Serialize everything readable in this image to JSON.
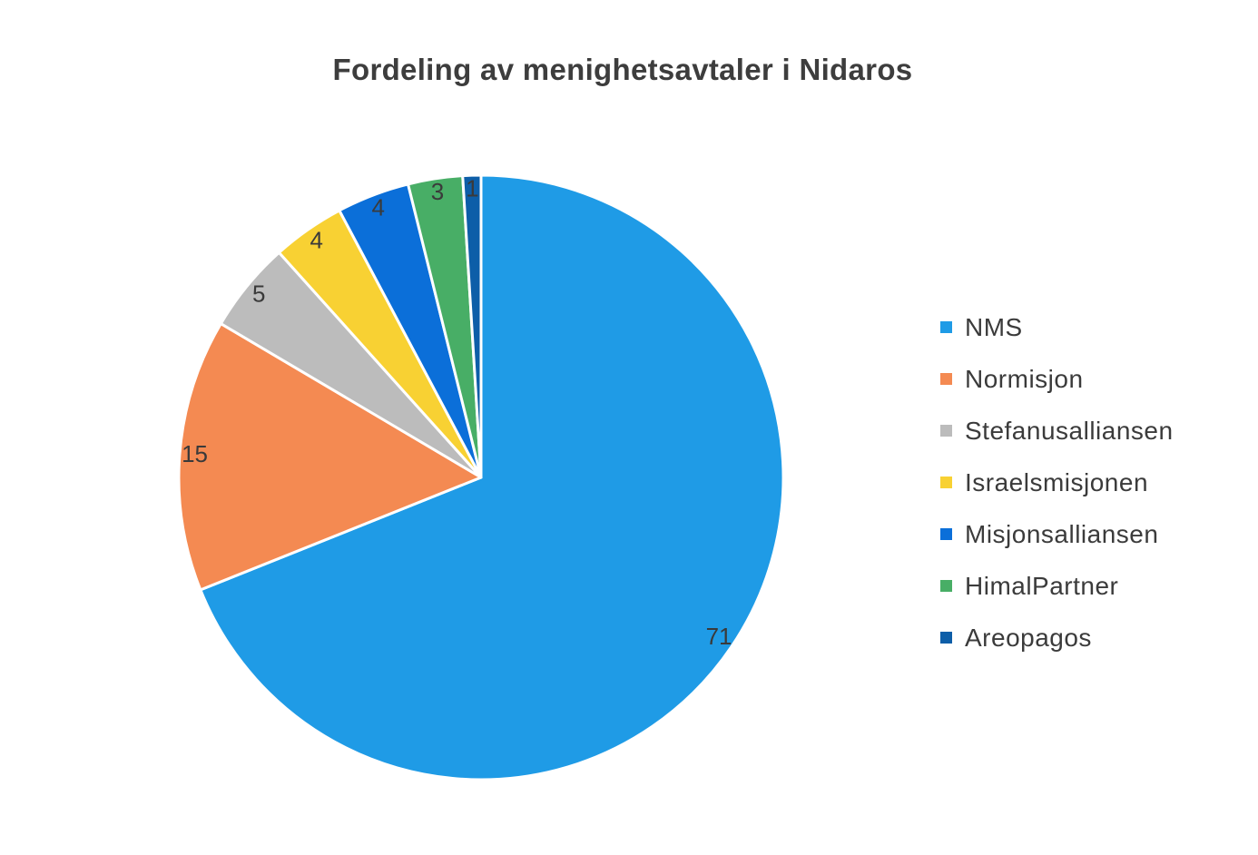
{
  "chart_data": {
    "type": "pie",
    "title": "Fordeling av menighetsavtaler i Nidaros",
    "legend_position": "right",
    "slices": [
      {
        "label": "NMS",
        "value": 71,
        "color": "#1f9be6"
      },
      {
        "label": "Normisjon",
        "value": 15,
        "color": "#f48a52"
      },
      {
        "label": "Stefanusalliansen",
        "value": 5,
        "color": "#bcbcbc"
      },
      {
        "label": "Israelsmisjonen",
        "value": 4,
        "color": "#f8d133"
      },
      {
        "label": "Misjonsalliansen",
        "value": 4,
        "color": "#0b6fd9"
      },
      {
        "label": "HimalPartner",
        "value": 3,
        "color": "#48ae66"
      },
      {
        "label": "Areopagos",
        "value": 1,
        "color": "#0d5ea8"
      }
    ]
  }
}
